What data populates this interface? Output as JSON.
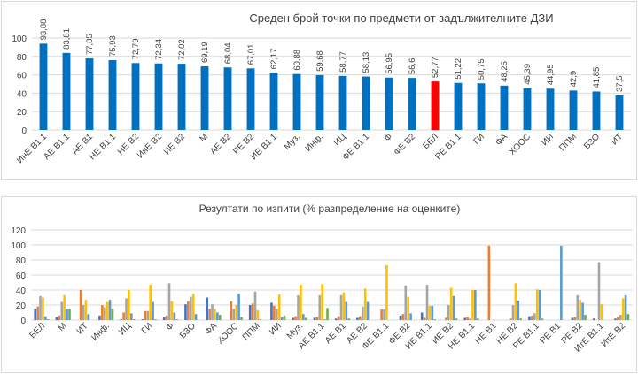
{
  "chart_data": [
    {
      "type": "bar",
      "title": "Среден брой точки по предмети от задължителните ДЗИ",
      "categories": [
        "ИнЕ В1.1",
        "АЕ В1.1",
        "АЕ В1",
        "НЕ В1.1",
        "НЕ В2",
        "ИнЕ В2",
        "ИЕ В2",
        "М",
        "АЕ В2",
        "РЕ В2",
        "ИЕ В1.1",
        "Муз.",
        "Инф.",
        "ИЦ",
        "ФЕ В1.1",
        "Ф",
        "ФЕ В2",
        "БЕЛ",
        "РЕ В1.1",
        "ГИ",
        "ФА",
        "ХООС",
        "ИИ",
        "ППМ",
        "БЗО",
        "ИТ"
      ],
      "values": [
        93.88,
        83.81,
        77.85,
        75.93,
        72.79,
        72.34,
        72.02,
        69.19,
        68.04,
        67.01,
        62.17,
        60.88,
        59.68,
        58.77,
        58.13,
        56.95,
        56.6,
        52.77,
        51.22,
        50.75,
        48.25,
        45.39,
        44.95,
        42.9,
        41.85,
        37.5
      ],
      "value_labels": [
        "93,88",
        "83,81",
        "77,85",
        "75,93",
        "72,79",
        "72,34",
        "72,02",
        "69,19",
        "68,04",
        "67,01",
        "62,17",
        "60,88",
        "59,68",
        "58,77",
        "58,13",
        "56,95",
        "56,6",
        "52,77",
        "51,22",
        "50,75",
        "48,25",
        "45,39",
        "44,95",
        "42,9",
        "41,85",
        "37,5"
      ],
      "ylim": [
        0,
        100
      ],
      "yticks": [
        0,
        20,
        40,
        60,
        80,
        100
      ],
      "grid": true,
      "colors": {
        "bar": "#0070c0",
        "highlight": "#ff0000",
        "highlight_category": "БЕЛ",
        "grid": "#d9d9d9",
        "text": "#404040"
      }
    },
    {
      "type": "bar",
      "title": "Резултати по изпити (% разпределение на оценките)",
      "categories": [
        "БЕЛ",
        "М",
        "ИТ",
        "Инф.",
        "ИЦ",
        "ГИ",
        "Ф",
        "БЗО",
        "ФА",
        "ХООС",
        "ППМ",
        "ИИ",
        "Муз.",
        "АЕ В1.1",
        "АЕ В1",
        "АЕ В2",
        "ФЕ В1.1",
        "ФЕ В2",
        "ИЕ В1.1",
        "ИЕ В2",
        "НЕ В1.1",
        "НЕ В1",
        "НЕ В2",
        "РЕ В1.1",
        "РЕ В1",
        "РЕ В2",
        "ИтЕ В1.1",
        "ИтЕ В2"
      ],
      "series": [
        {
          "values": [
            15,
            4,
            0,
            6,
            1,
            1,
            4,
            21,
            30,
            0,
            20,
            23,
            3,
            3,
            2,
            3,
            0,
            6,
            10,
            0,
            3,
            0,
            0,
            5,
            0,
            3,
            2,
            2
          ]
        },
        {
          "values": [
            18,
            6,
            40,
            20,
            10,
            12,
            6,
            25,
            15,
            25,
            22,
            19,
            5,
            4,
            5,
            5,
            14,
            8,
            3,
            3,
            4,
            99,
            2,
            6,
            0,
            4,
            0,
            4
          ]
        },
        {
          "values": [
            32,
            24,
            20,
            17,
            29,
            12,
            49,
            31,
            21,
            15,
            38,
            15,
            33,
            33,
            33,
            18,
            14,
            46,
            47,
            20,
            2,
            0,
            20,
            9,
            0,
            33,
            77,
            7
          ]
        },
        {
          "values": [
            30,
            33,
            27,
            24,
            40,
            47,
            25,
            35,
            15,
            20,
            13,
            34,
            47,
            48,
            37,
            42,
            73,
            31,
            19,
            43,
            40,
            0,
            49,
            41,
            0,
            27,
            21,
            29
          ]
        },
        {
          "values": [
            5,
            15,
            8,
            27,
            9,
            24,
            10,
            8,
            10,
            35,
            1,
            4,
            8,
            1,
            24,
            24,
            0,
            9,
            19,
            32,
            40,
            0,
            26,
            40,
            99,
            23,
            0,
            33
          ]
        },
        {
          "values": [
            1,
            15,
            0,
            15,
            1,
            1,
            1,
            0,
            7,
            4,
            0,
            6,
            3,
            16,
            2,
            0,
            0,
            0,
            1,
            2,
            2,
            0,
            2,
            2,
            0,
            7,
            0,
            8
          ]
        }
      ],
      "ylim": [
        0,
        120
      ],
      "yticks": [
        0,
        20,
        40,
        60,
        80,
        100,
        120
      ],
      "grid": true,
      "colors": {
        "series": [
          "#4472c4",
          "#ed7d31",
          "#a5a5a5",
          "#ffc000",
          "#5b9bd5",
          "#70ad47"
        ],
        "grid": "#d9d9d9",
        "text": "#404040"
      }
    }
  ]
}
